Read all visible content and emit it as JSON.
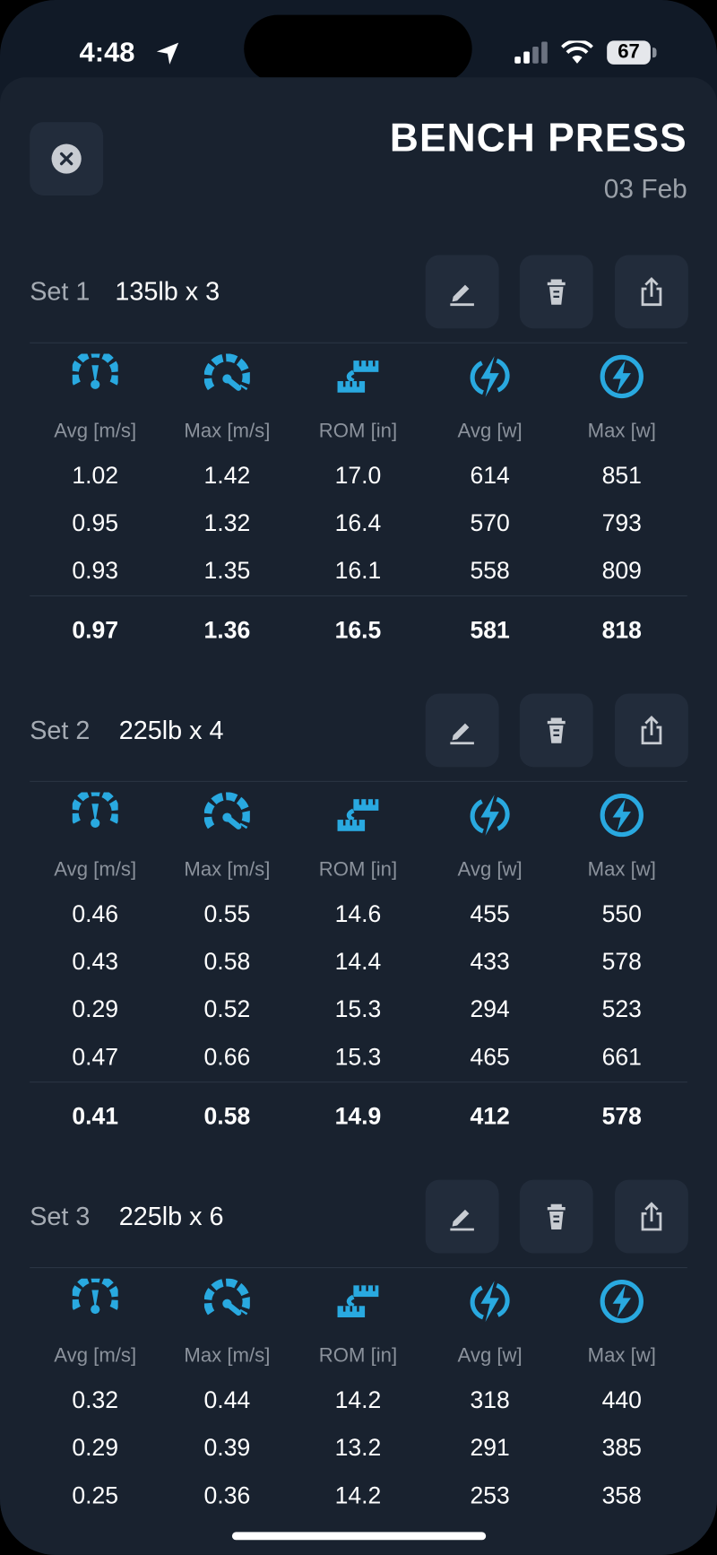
{
  "status_bar": {
    "time": "4:48",
    "battery": "67"
  },
  "header": {
    "title": "BENCH PRESS",
    "date": "03 Feb"
  },
  "columns": [
    "Avg [m/s]",
    "Max [m/s]",
    "ROM [in]",
    "Avg [w]",
    "Max [w]"
  ],
  "sets": [
    {
      "label": "Set 1",
      "detail": "135lb x 3",
      "rows": [
        [
          "1.02",
          "1.42",
          "17.0",
          "614",
          "851"
        ],
        [
          "0.95",
          "1.32",
          "16.4",
          "570",
          "793"
        ],
        [
          "0.93",
          "1.35",
          "16.1",
          "558",
          "809"
        ]
      ],
      "summary": [
        "0.97",
        "1.36",
        "16.5",
        "581",
        "818"
      ]
    },
    {
      "label": "Set 2",
      "detail": "225lb x 4",
      "rows": [
        [
          "0.46",
          "0.55",
          "14.6",
          "455",
          "550"
        ],
        [
          "0.43",
          "0.58",
          "14.4",
          "433",
          "578"
        ],
        [
          "0.29",
          "0.52",
          "15.3",
          "294",
          "523"
        ],
        [
          "0.47",
          "0.66",
          "15.3",
          "465",
          "661"
        ]
      ],
      "summary": [
        "0.41",
        "0.58",
        "14.9",
        "412",
        "578"
      ]
    },
    {
      "label": "Set 3",
      "detail": "225lb x 6",
      "rows": [
        [
          "0.32",
          "0.44",
          "14.2",
          "318",
          "440"
        ],
        [
          "0.29",
          "0.39",
          "13.2",
          "291",
          "385"
        ],
        [
          "0.25",
          "0.36",
          "14.2",
          "253",
          "358"
        ]
      ]
    }
  ]
}
